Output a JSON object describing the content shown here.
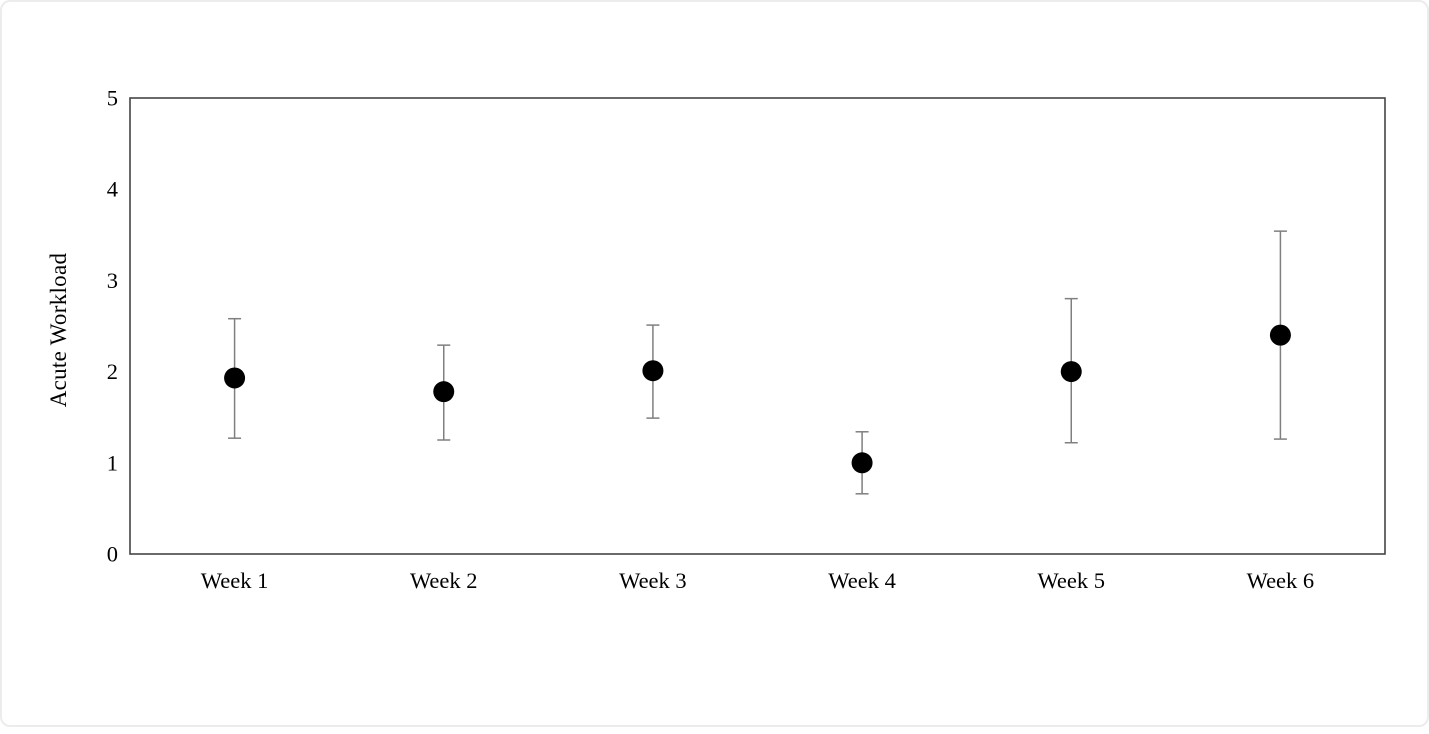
{
  "chart_data": {
    "type": "scatter",
    "title": "",
    "xlabel": "",
    "ylabel": "Acute Workload",
    "categories": [
      "Week 1",
      "Week 2",
      "Week 3",
      "Week 4",
      "Week 5",
      "Week 6"
    ],
    "series": [
      {
        "name": "Acute Workload mean with error bars",
        "values": [
          1.93,
          1.78,
          2.01,
          1.0,
          2.0,
          2.4
        ],
        "error_upper": [
          2.58,
          2.29,
          2.51,
          1.34,
          2.8,
          3.54
        ],
        "error_lower": [
          1.27,
          1.25,
          1.49,
          0.66,
          1.22,
          1.26
        ]
      }
    ],
    "ylim": [
      0,
      5
    ],
    "yticks": [
      0,
      1,
      2,
      3,
      4,
      5
    ],
    "grid": false,
    "legend": false,
    "marker_color": "#000000",
    "error_bar_color": "#7f7f7f",
    "frame_color": "#454545",
    "page_border_color": "#ececec"
  }
}
